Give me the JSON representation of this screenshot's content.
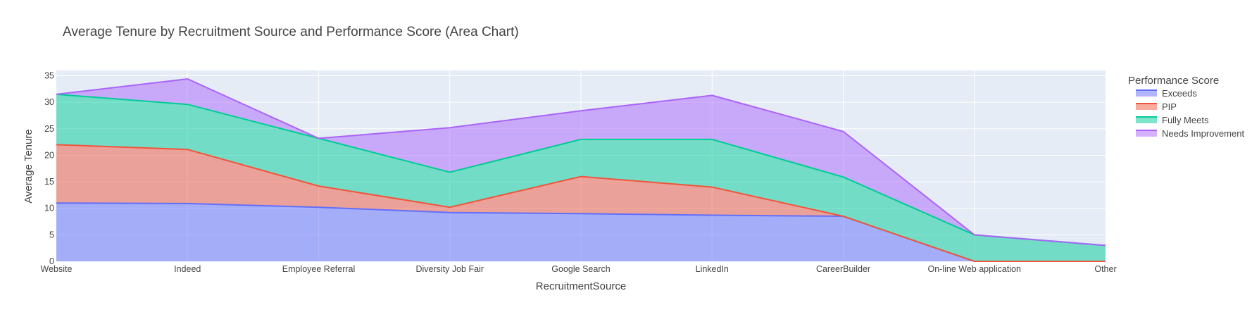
{
  "chart_data": {
    "type": "area",
    "stacked": true,
    "title": "Average Tenure by Recruitment Source and Performance Score (Area Chart)",
    "xlabel": "RecruitmentSource",
    "ylabel": "Average Tenure",
    "categories": [
      "Website",
      "Indeed",
      "Employee Referral",
      "Diversity Job Fair",
      "Google Search",
      "LinkedIn",
      "CareerBuilder",
      "On-line Web application",
      "Other"
    ],
    "ylim": [
      0,
      36
    ],
    "yticks": [
      0,
      5,
      10,
      15,
      20,
      25,
      30,
      35
    ],
    "grid": true,
    "legend_title": "Performance Score",
    "legend_position": "right",
    "series": [
      {
        "name": "Exceeds",
        "color": "#636efa",
        "values": [
          11.0,
          10.9,
          10.2,
          9.2,
          9.0,
          8.7,
          8.5,
          0.0,
          0.0
        ]
      },
      {
        "name": "PIP",
        "color": "#ef553b",
        "values": [
          11.0,
          10.2,
          4.0,
          1.0,
          7.0,
          5.3,
          0.0,
          0.0,
          0.0
        ]
      },
      {
        "name": "Fully Meets",
        "color": "#00cc96",
        "values": [
          9.5,
          8.5,
          9.0,
          6.6,
          7.0,
          9.0,
          7.4,
          5.0,
          3.0
        ]
      },
      {
        "name": "Needs Improvement",
        "color": "#ab63fa",
        "values": [
          0.0,
          4.8,
          0.0,
          8.4,
          5.4,
          8.3,
          8.6,
          0.0,
          0.0
        ]
      }
    ]
  }
}
